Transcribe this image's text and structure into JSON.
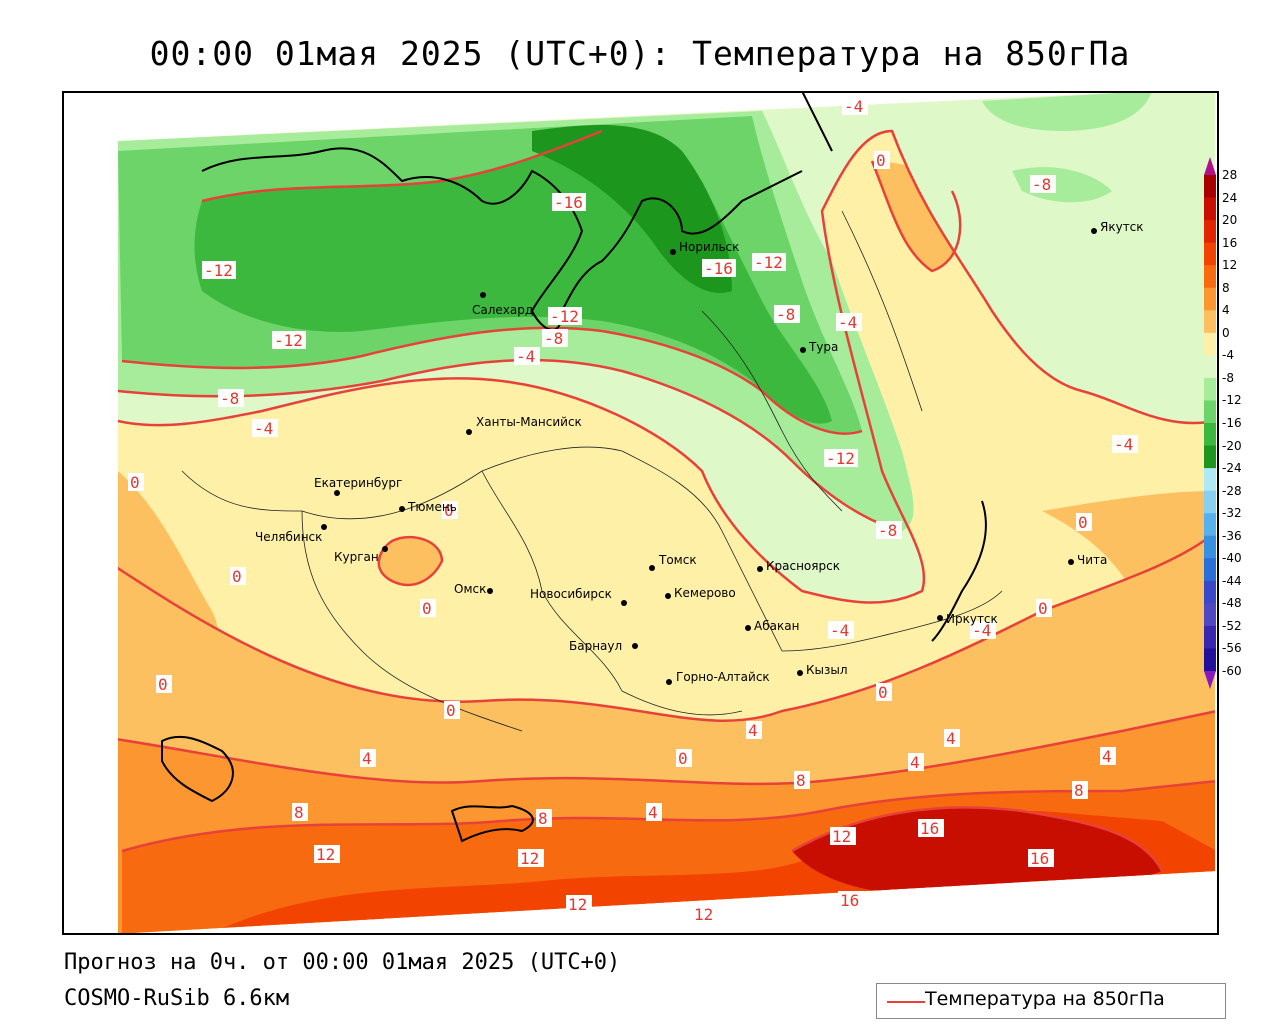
{
  "title": "00:00 01мая 2025 (UTC+0): Температура на 850гПа",
  "footer": {
    "forecast": "Прогноз на 0ч. от 00:00 01мая 2025 (UTC+0)",
    "model": "COSMO-RuSib 6.6км"
  },
  "legend": {
    "label": "Температура на 850гПа",
    "line_color": "#e8413a"
  },
  "colorbar": {
    "ticks": [
      "28",
      "24",
      "20",
      "16",
      "12",
      "8",
      "4",
      "0",
      "-4",
      "-8",
      "-12",
      "-16",
      "-20",
      "-24",
      "-28",
      "-32",
      "-36",
      "-40",
      "-44",
      "-48",
      "-52",
      "-56",
      "-60"
    ],
    "colors": [
      "#a80000",
      "#c80e00",
      "#e22400",
      "#f24400",
      "#f86a10",
      "#fb9630",
      "#fdc060",
      "#fff0a8",
      "#dff8c8",
      "#a6ec9a",
      "#6cd468",
      "#3cb83e",
      "#1c961c",
      "#b0e8f4",
      "#88d0f0",
      "#58b0ec",
      "#3890e0",
      "#2870d8",
      "#3848c8",
      "#5048c0",
      "#3828b0",
      "#20109a"
    ]
  },
  "cities": [
    {
      "name": "Якутск"
    },
    {
      "name": "Норильск"
    },
    {
      "name": "Салехард"
    },
    {
      "name": "Тура"
    },
    {
      "name": "Ханты-Мансийск"
    },
    {
      "name": "Екатеринбург"
    },
    {
      "name": "Тюмень"
    },
    {
      "name": "Челябинск"
    },
    {
      "name": "Курган"
    },
    {
      "name": "Омск"
    },
    {
      "name": "Новосибирск"
    },
    {
      "name": "Томск"
    },
    {
      "name": "Кемерово"
    },
    {
      "name": "Красноярск"
    },
    {
      "name": "Абакан"
    },
    {
      "name": "Барнаул"
    },
    {
      "name": "Горно-Алтайск"
    },
    {
      "name": "Кызыл"
    },
    {
      "name": "Иркутск"
    },
    {
      "name": "Чита"
    }
  ],
  "isoline_labels": [
    "-4",
    "0",
    "-8",
    "-16",
    "-12",
    "-16",
    "-12",
    "-12",
    "-12",
    "-8",
    "-8",
    "-4",
    "-12",
    "-4",
    "-8",
    "-4",
    "0",
    "0",
    "0",
    "0",
    "0",
    "0",
    "0",
    "-4",
    "-4",
    "0",
    "4",
    "4",
    "4",
    "8",
    "8",
    "8",
    "8",
    "12",
    "12",
    "12",
    "12",
    "12",
    "16",
    "16",
    "16",
    "4",
    "4",
    "4",
    "0",
    "0",
    "-8",
    "-4"
  ]
}
